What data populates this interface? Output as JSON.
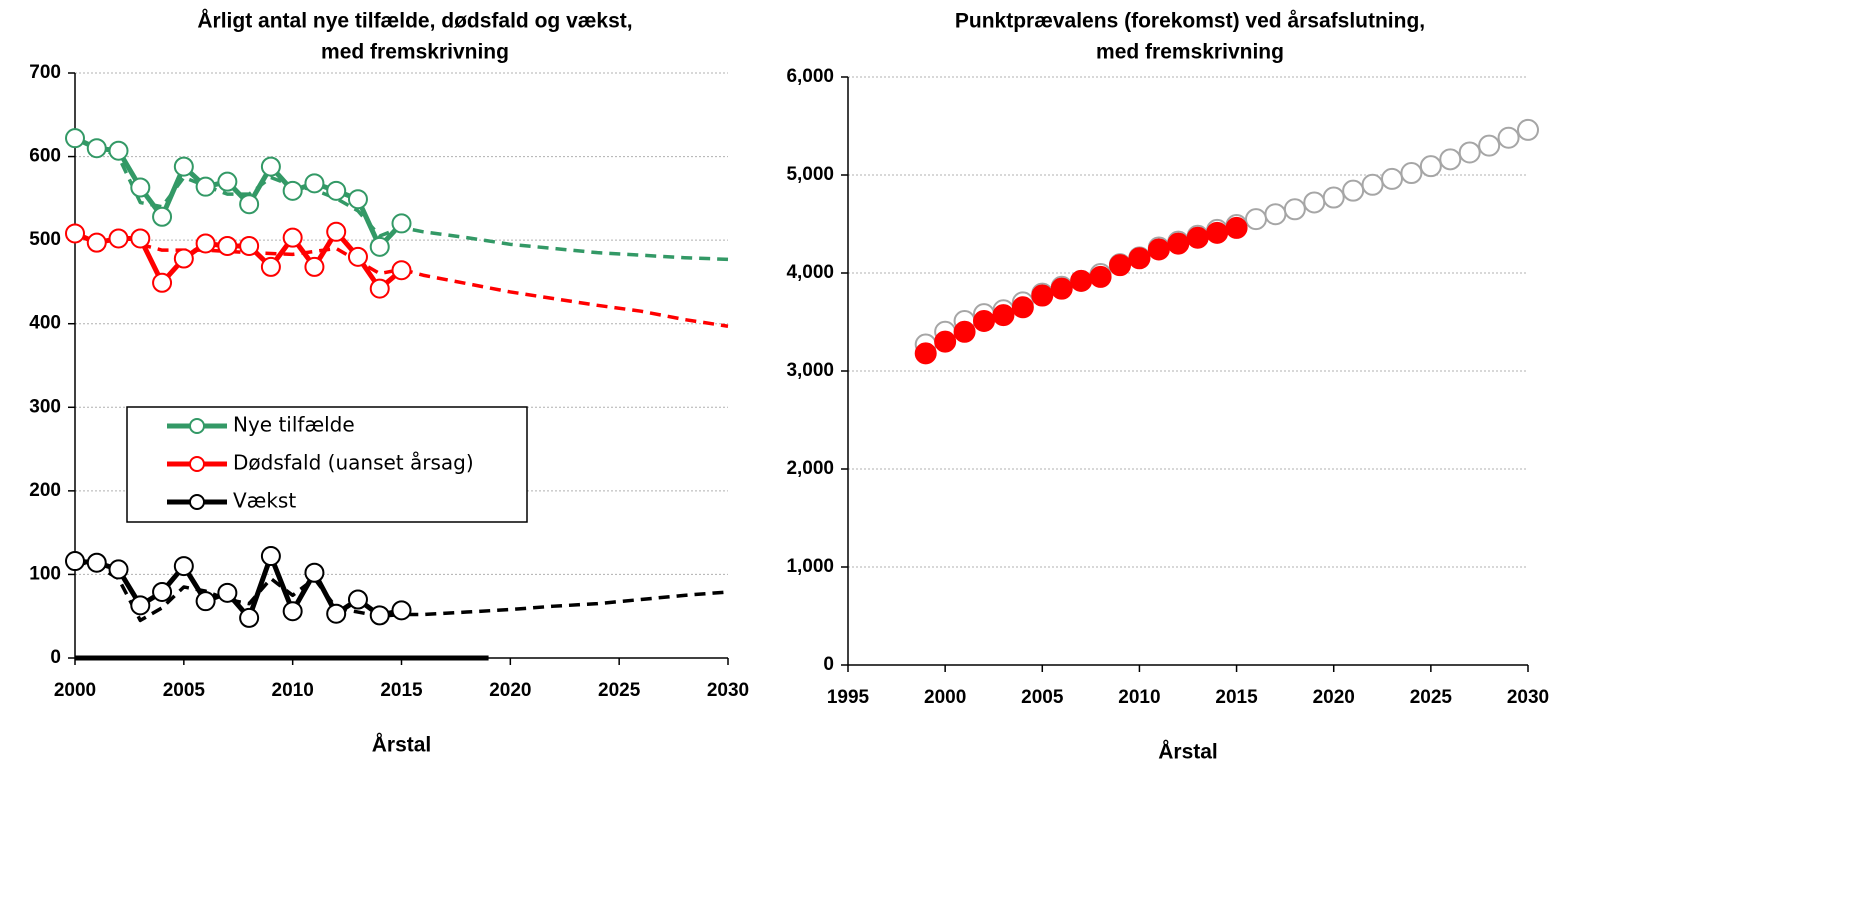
{
  "chart_data": [
    {
      "type": "line",
      "title": [
        "Årligt antal  nye tilfælde, dødsfald og vækst,",
        "med fremskrivning"
      ],
      "xlabel": "Årstal",
      "xlim": [
        2000,
        2030
      ],
      "xticks": [
        2000,
        2005,
        2010,
        2015,
        2020,
        2025,
        2030
      ],
      "ylim": [
        0,
        700
      ],
      "yticks": [
        0,
        100,
        200,
        300,
        400,
        500,
        600,
        700
      ],
      "grid": true,
      "legend": "left",
      "series": [
        {
          "name": "Nye tilfælde",
          "color": "#339966",
          "style": "solid",
          "markers": true,
          "x": [
            2000,
            2001,
            2002,
            2003,
            2004,
            2005,
            2006,
            2007,
            2008,
            2009,
            2010,
            2011,
            2012,
            2013,
            2014,
            2015
          ],
          "values": [
            622,
            610,
            607,
            563,
            528,
            588,
            564,
            570,
            543,
            588,
            559,
            568,
            559,
            549,
            492,
            520
          ]
        },
        {
          "name": "Dødsfald (uanset årsag)",
          "color": "#ff0000",
          "style": "solid",
          "markers": true,
          "x": [
            2000,
            2001,
            2002,
            2003,
            2004,
            2005,
            2006,
            2007,
            2008,
            2009,
            2010,
            2011,
            2012,
            2013,
            2014,
            2015
          ],
          "values": [
            508,
            497,
            502,
            502,
            449,
            478,
            496,
            493,
            493,
            468,
            503,
            468,
            510,
            480,
            442,
            464
          ]
        },
        {
          "name": "Vækst",
          "color": "#000000",
          "style": "solid",
          "markers": true,
          "x": [
            2000,
            2001,
            2002,
            2003,
            2004,
            2005,
            2006,
            2007,
            2008,
            2009,
            2010,
            2011,
            2012,
            2013,
            2014,
            2015
          ],
          "values": [
            116,
            114,
            106,
            63,
            79,
            110,
            68,
            78,
            48,
            122,
            56,
            102,
            53,
            70,
            51,
            57
          ]
        },
        {
          "color": "#339966",
          "style": "dashed",
          "markers": false,
          "x": [
            2000,
            2001,
            2002,
            2003,
            2004,
            2005,
            2006,
            2007,
            2008,
            2009,
            2010,
            2011,
            2012,
            2013,
            2014,
            2015,
            2016,
            2018,
            2020,
            2022,
            2024,
            2026,
            2028,
            2030
          ],
          "values": [
            620,
            612,
            600,
            545,
            540,
            575,
            565,
            555,
            555,
            575,
            565,
            560,
            550,
            535,
            505,
            515,
            510,
            503,
            495,
            490,
            485,
            482,
            479,
            477
          ]
        },
        {
          "color": "#ff0000",
          "style": "dashed",
          "markers": false,
          "x": [
            2003,
            2004,
            2006,
            2008,
            2010,
            2012,
            2013,
            2014,
            2015,
            2016,
            2018,
            2020,
            2022,
            2024,
            2026,
            2028,
            2030
          ],
          "values": [
            495,
            488,
            488,
            485,
            483,
            490,
            475,
            460,
            465,
            458,
            448,
            438,
            430,
            422,
            415,
            405,
            397
          ]
        },
        {
          "color": "#000000",
          "style": "dashed",
          "markers": false,
          "x": [
            2000,
            2001,
            2002,
            2003,
            2004,
            2005,
            2006,
            2007,
            2008,
            2009,
            2010,
            2011,
            2012,
            2013,
            2014,
            2015,
            2016,
            2018,
            2020,
            2022,
            2024,
            2026,
            2028,
            2030
          ],
          "values": [
            116,
            110,
            95,
            45,
            60,
            85,
            80,
            70,
            65,
            95,
            75,
            95,
            60,
            55,
            50,
            52,
            52,
            55,
            58,
            62,
            65,
            70,
            75,
            79
          ]
        },
        {
          "color": "#000000",
          "style": "solid",
          "markers": false,
          "x": [
            2000,
            2019
          ],
          "values": [
            0,
            0
          ]
        }
      ]
    },
    {
      "type": "scatter",
      "title": [
        "Punktprævalens (forekomst) ved årsafslutning,",
        "med fremskrivning"
      ],
      "xlabel": "Årstal",
      "xlim": [
        1995,
        2030
      ],
      "xticks": [
        1995,
        2000,
        2005,
        2010,
        2015,
        2020,
        2025,
        2030
      ],
      "ylim": [
        0,
        6000
      ],
      "yticks": [
        0,
        {
          "value": 1000,
          "label": "1,000"
        },
        {
          "value": 2000,
          "label": "2,000"
        },
        {
          "value": 3000,
          "label": "3,000"
        },
        {
          "value": 4000,
          "label": "4,000"
        },
        {
          "value": 5000,
          "label": "5,000"
        },
        {
          "value": 6000,
          "label": "6,000"
        }
      ],
      "grid": true,
      "series": [
        {
          "color": "#a6a6a6",
          "filled": false,
          "x": [
            1999,
            2000,
            2001,
            2002,
            2003,
            2004,
            2005,
            2006,
            2007,
            2008,
            2009,
            2010,
            2011,
            2012,
            2013,
            2014,
            2015,
            2016,
            2017,
            2018,
            2019,
            2020,
            2021,
            2022,
            2023,
            2024,
            2025,
            2026,
            2027,
            2028,
            2029,
            2030
          ],
          "values": [
            3270,
            3400,
            3510,
            3580,
            3620,
            3700,
            3790,
            3860,
            3920,
            3990,
            4090,
            4160,
            4260,
            4320,
            4380,
            4440,
            4490,
            4550,
            4600,
            4650,
            4720,
            4770,
            4840,
            4900,
            4960,
            5020,
            5090,
            5160,
            5230,
            5300,
            5380,
            5460
          ]
        },
        {
          "color": "#ff0000",
          "filled": true,
          "x": [
            1999,
            2000,
            2001,
            2002,
            2003,
            2004,
            2005,
            2006,
            2007,
            2008,
            2009,
            2010,
            2011,
            2012,
            2013,
            2014,
            2015
          ],
          "values": [
            3180,
            3300,
            3400,
            3510,
            3570,
            3650,
            3770,
            3840,
            3920,
            3960,
            4080,
            4150,
            4240,
            4300,
            4360,
            4410,
            4460
          ]
        }
      ]
    }
  ]
}
